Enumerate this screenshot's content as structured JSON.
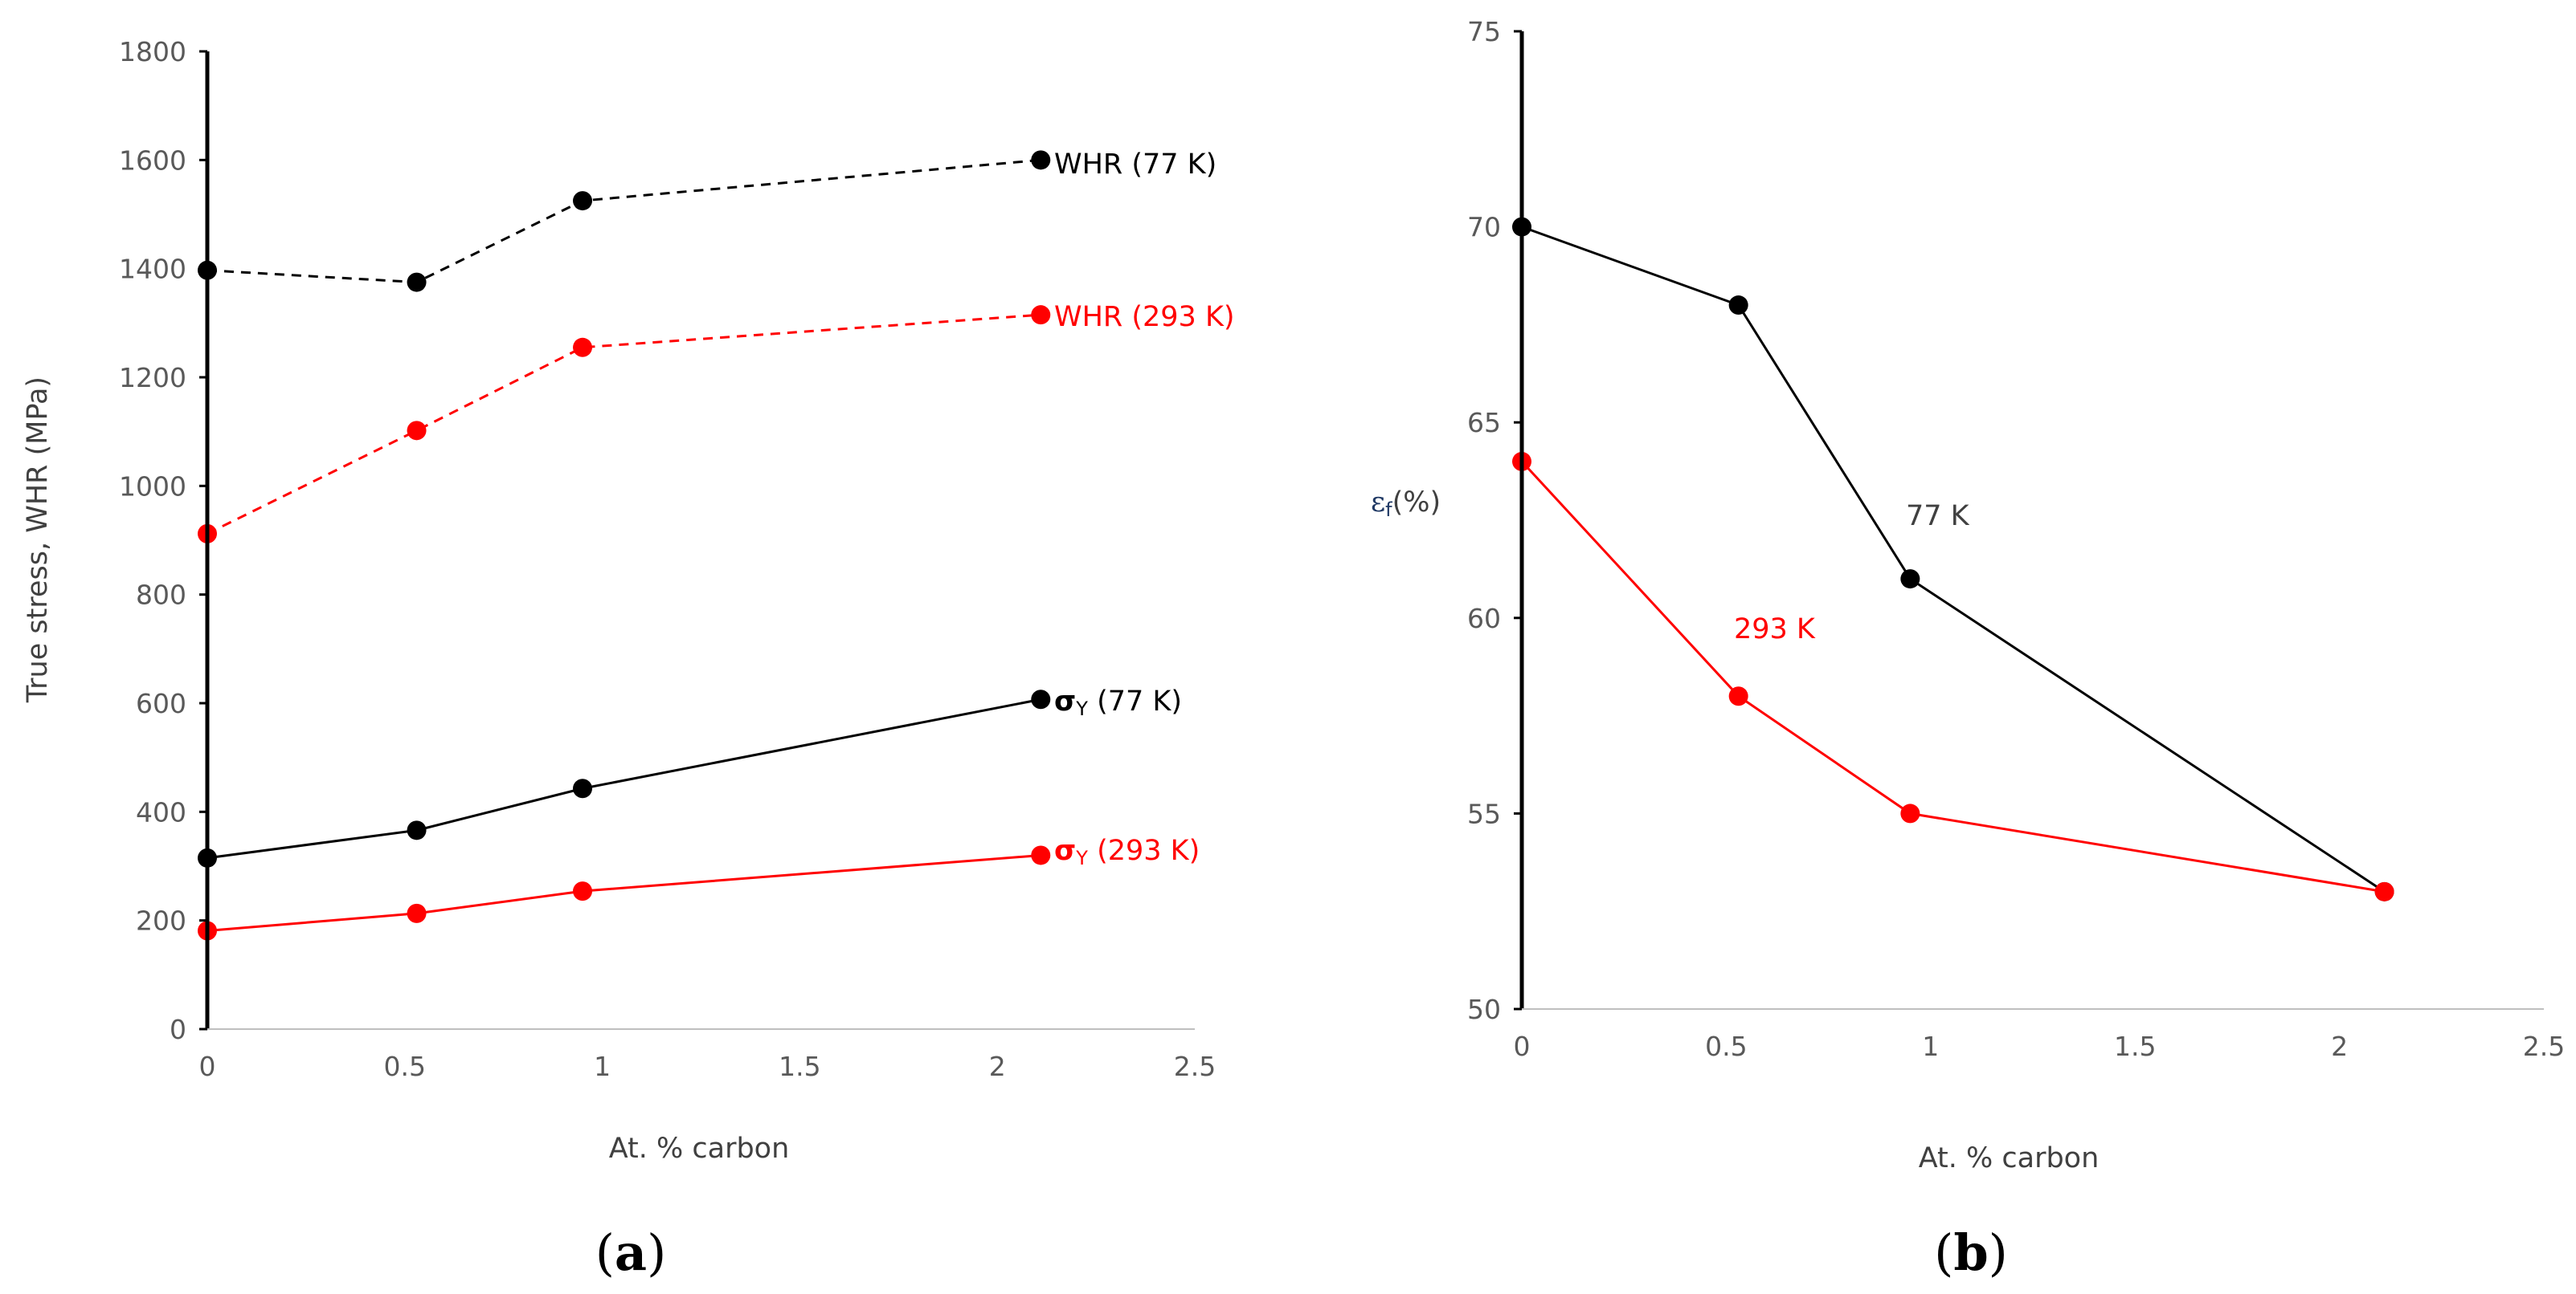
{
  "colors": {
    "black": "#000000",
    "red": "#ff0000",
    "axis": "#000000",
    "ylabel_b": "#1f3864"
  },
  "chart_data": [
    {
      "id": "a",
      "type": "line",
      "panel_label": "a",
      "title": "",
      "xlabel": "At. % carbon",
      "ylabel": "True stress,  WHR (MPa)",
      "xlim": [
        0,
        2.5
      ],
      "ylim": [
        0,
        1800
      ],
      "xticks": [
        0,
        0.5,
        1,
        1.5,
        2,
        2.5
      ],
      "xtick_labels": [
        "0",
        "0.5",
        "1",
        "1.5",
        "2",
        "2.5"
      ],
      "yticks": [
        0,
        200,
        400,
        600,
        800,
        1000,
        1200,
        1400,
        1600,
        1800
      ],
      "ytick_labels": [
        "0",
        "200",
        "400",
        "600",
        "800",
        "1000",
        "1200",
        "1400",
        "1600",
        "1800"
      ],
      "grid": false,
      "series": [
        {
          "name": "WHR (77 K)",
          "label_sym": "",
          "label_rest": "WHR (77 K)",
          "color": "#000000",
          "dashed": true,
          "x": [
            0,
            0.53,
            0.95,
            2.11
          ],
          "y": [
            1397,
            1375,
            1525,
            1600
          ]
        },
        {
          "name": "WHR (293 K)",
          "label_sym": "",
          "label_rest": "WHR (293 K)",
          "color": "#ff0000",
          "dashed": true,
          "x": [
            0,
            0.53,
            0.95,
            2.11
          ],
          "y": [
            912,
            1102,
            1255,
            1315
          ]
        },
        {
          "name": "σY (77 K)",
          "label_sym": "σ",
          "label_sub": "Y",
          "label_rest": " (77 K)",
          "color": "#000000",
          "dashed": false,
          "x": [
            0,
            0.53,
            0.95,
            2.11
          ],
          "y": [
            315,
            366,
            443,
            607
          ]
        },
        {
          "name": "σY (293 K)",
          "label_sym": "σ",
          "label_sub": "Y",
          "label_rest": " (293 K)",
          "color": "#ff0000",
          "dashed": false,
          "x": [
            0,
            0.53,
            0.95,
            2.11
          ],
          "y": [
            181,
            213,
            254,
            320
          ]
        }
      ]
    },
    {
      "id": "b",
      "type": "line",
      "panel_label": "b",
      "title": "",
      "xlabel": "At. % carbon",
      "ylabel_sym": "ε",
      "ylabel_sub": "f",
      "ylabel_rest": "(%)",
      "xlim": [
        0,
        2.5
      ],
      "ylim": [
        50,
        75
      ],
      "xticks": [
        0,
        0.5,
        1,
        1.5,
        2,
        2.5
      ],
      "xtick_labels": [
        "0",
        "0.5",
        "1",
        "1.5",
        "2",
        "2.5"
      ],
      "yticks": [
        50,
        55,
        60,
        65,
        70,
        75
      ],
      "ytick_labels": [
        "50",
        "55",
        "60",
        "65",
        "70",
        "75"
      ],
      "grid": false,
      "series": [
        {
          "name": "77 K",
          "color": "#000000",
          "dashed": false,
          "x": [
            0,
            0.53,
            0.95,
            2.11
          ],
          "y": [
            70,
            68,
            61,
            53
          ]
        },
        {
          "name": "293 K",
          "color": "#ff0000",
          "dashed": false,
          "x": [
            0,
            0.53,
            0.95,
            2.11
          ],
          "y": [
            64,
            58,
            55,
            53
          ]
        }
      ]
    }
  ]
}
